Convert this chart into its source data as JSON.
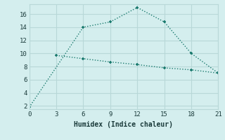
{
  "line1_x": [
    0,
    6,
    9,
    12,
    15,
    18,
    21
  ],
  "line1_y": [
    1.8,
    14.0,
    14.8,
    17.0,
    14.8,
    10.0,
    7.0
  ],
  "line2_x": [
    3,
    6,
    9,
    12,
    15,
    18,
    21
  ],
  "line2_y": [
    9.7,
    9.2,
    8.7,
    8.3,
    7.8,
    7.5,
    7.0
  ],
  "line_color": "#1a7a6e",
  "bg_color": "#d4eeee",
  "grid_color": "#b8d8d8",
  "xlabel": "Humidex (Indice chaleur)",
  "xlim": [
    0,
    21
  ],
  "ylim": [
    1.5,
    17.5
  ],
  "xticks": [
    0,
    3,
    6,
    9,
    12,
    15,
    18,
    21
  ],
  "yticks": [
    2,
    4,
    6,
    8,
    10,
    12,
    14,
    16
  ],
  "markersize": 3.5,
  "linewidth": 1.0
}
